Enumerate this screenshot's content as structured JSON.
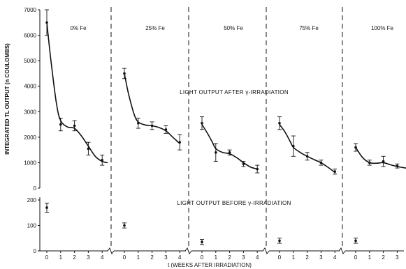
{
  "chart_data": {
    "type": "scatter",
    "title": "",
    "ylabel": "INTEGRATED TL OUTPUT (n COULOMBS)",
    "xlabel": "t (WEEKS AFTER IRRADIATION)",
    "annotations": {
      "after": "LIGHT OUTPUT AFTER γ-IRRADIATION",
      "before": "LIGHT OUTPUT BEFORE γ-IRRADIATION"
    },
    "y_upper": {
      "range": [
        0,
        7000
      ],
      "ticks": [
        0,
        1000,
        2000,
        3000,
        4000,
        5000,
        6000,
        7000
      ],
      "tick_labels": [
        "0",
        "1000",
        "2000",
        "3000",
        "4000",
        "5000",
        "6000",
        "7000"
      ]
    },
    "y_lower": {
      "range": [
        0,
        200
      ],
      "ticks": [
        0,
        100,
        200
      ],
      "tick_labels": [
        "0",
        "100",
        "200"
      ]
    },
    "x_ticks": [
      0,
      1,
      2,
      3,
      4
    ],
    "x_tick_labels": [
      "0",
      "1",
      "2",
      "3",
      "4"
    ],
    "panels": [
      {
        "label": "0% Fe",
        "after": {
          "x": [
            0,
            1,
            2,
            3,
            4
          ],
          "y": [
            6500,
            2500,
            2450,
            1550,
            1100
          ],
          "err": [
            500,
            250,
            200,
            250,
            200
          ],
          "curve": [
            [
              0,
              6500
            ],
            [
              0.3,
              5000
            ],
            [
              0.7,
              3300
            ],
            [
              1,
              2650
            ],
            [
              1.5,
              2400
            ],
            [
              2,
              2350
            ],
            [
              2.5,
              2050
            ],
            [
              3,
              1650
            ],
            [
              3.5,
              1250
            ],
            [
              4,
              1050
            ],
            [
              4.4,
              1000
            ]
          ]
        },
        "before": {
          "x": [
            0
          ],
          "y": [
            170
          ],
          "err": [
            18
          ]
        }
      },
      {
        "label": "25% Fe",
        "after": {
          "x": [
            0,
            1,
            2,
            3,
            4
          ],
          "y": [
            4500,
            2550,
            2450,
            2300,
            1800
          ],
          "err": [
            200,
            200,
            150,
            150,
            300
          ],
          "curve": [
            [
              0,
              4500
            ],
            [
              0.3,
              3700
            ],
            [
              0.7,
              2900
            ],
            [
              1,
              2600
            ],
            [
              1.5,
              2480
            ],
            [
              2,
              2450
            ],
            [
              2.5,
              2380
            ],
            [
              3,
              2250
            ],
            [
              3.5,
              2000
            ],
            [
              4,
              1750
            ]
          ]
        },
        "before": {
          "x": [
            0
          ],
          "y": [
            100
          ],
          "err": [
            10
          ]
        }
      },
      {
        "label": "50% Fe",
        "after": {
          "x": [
            0,
            1,
            2,
            3,
            4
          ],
          "y": [
            2550,
            1400,
            1400,
            950,
            750
          ],
          "err": [
            250,
            350,
            100,
            100,
            150
          ],
          "curve": [
            [
              0,
              2500
            ],
            [
              0.4,
              2150
            ],
            [
              0.8,
              1750
            ],
            [
              1,
              1550
            ],
            [
              1.5,
              1400
            ],
            [
              2,
              1350
            ],
            [
              2.5,
              1200
            ],
            [
              3,
              1000
            ],
            [
              3.5,
              830
            ],
            [
              4,
              750
            ]
          ]
        },
        "before": {
          "x": [
            0
          ],
          "y": [
            35
          ],
          "err": [
            10
          ]
        }
      },
      {
        "label": "75% Fe",
        "after": {
          "x": [
            0,
            1,
            2,
            3,
            4
          ],
          "y": [
            2550,
            1650,
            1250,
            1000,
            650
          ],
          "err": [
            250,
            400,
            150,
            100,
            100
          ],
          "curve": [
            [
              0,
              2500
            ],
            [
              0.4,
              2200
            ],
            [
              0.8,
              1800
            ],
            [
              1,
              1600
            ],
            [
              1.5,
              1400
            ],
            [
              2,
              1250
            ],
            [
              2.5,
              1120
            ],
            [
              3,
              1000
            ],
            [
              3.5,
              820
            ],
            [
              4,
              620
            ]
          ]
        },
        "before": {
          "x": [
            0
          ],
          "y": [
            40
          ],
          "err": [
            10
          ]
        }
      },
      {
        "label": "100% Fe",
        "after": {
          "x": [
            0,
            1,
            2,
            3
          ],
          "y": [
            1600,
            1000,
            1050,
            870
          ],
          "err": [
            150,
            100,
            200,
            80
          ],
          "curve": [
            [
              0,
              1600
            ],
            [
              0.5,
              1200
            ],
            [
              1,
              1000
            ],
            [
              1.5,
              980
            ],
            [
              2,
              1000
            ],
            [
              2.5,
              920
            ],
            [
              3,
              850
            ],
            [
              3.5,
              800
            ],
            [
              4,
              760
            ]
          ]
        },
        "before": {
          "x": [
            0
          ],
          "y": [
            40
          ],
          "err": [
            10
          ]
        }
      }
    ]
  }
}
